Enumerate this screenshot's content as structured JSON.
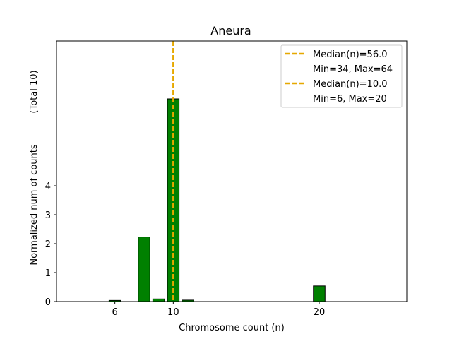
{
  "chart_data": {
    "type": "bar",
    "title": "Aneura",
    "xlabel": "Chromosome count (n)",
    "ylabel": "Normalized num of counts",
    "ylabel_total": "(Total 10)",
    "x_ticks": [
      6,
      10,
      20
    ],
    "x_tick_labels": [
      "6",
      "10",
      "20"
    ],
    "y_ticks": [
      0,
      1,
      2,
      3,
      4
    ],
    "y_tick_labels": [
      "0",
      "1",
      "2",
      "3",
      "4"
    ],
    "xlim": [
      2,
      26
    ],
    "ylim": [
      0,
      9
    ],
    "grid": false,
    "legend_position": "top-right",
    "bar_color": "#008000",
    "bar_edge_color": "#000000",
    "bar_width": 0.8,
    "x": [
      6,
      8,
      9,
      10,
      11,
      20
    ],
    "values": [
      0.04,
      2.23,
      0.09,
      7,
      0.05,
      0.54
    ],
    "median_line": {
      "x": 10,
      "color": "#e6a800"
    },
    "legend": [
      {
        "line": "Median(n)=56.0",
        "sub": "Min=34, Max=64",
        "color": "#e6a800"
      },
      {
        "line": "Median(n)=10.0",
        "sub": "Min=6, Max=20",
        "color": "#e6a800"
      }
    ]
  }
}
